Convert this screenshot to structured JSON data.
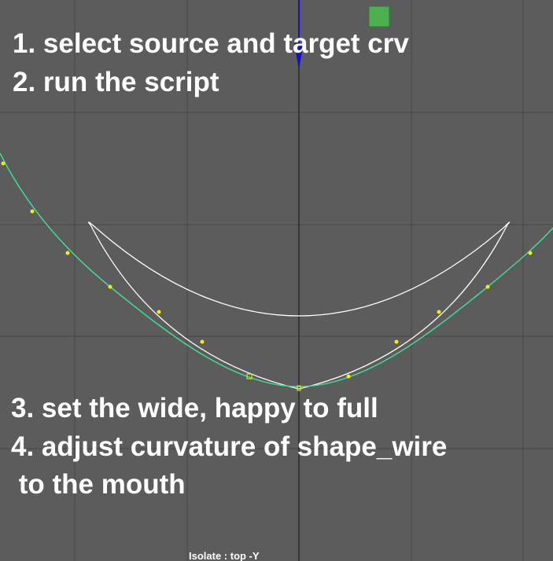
{
  "instructions_top": [
    "1. select source and target crv",
    "2. run the script"
  ],
  "instructions_bottom": [
    "3. set the wide, happy to full",
    "4. adjust curvature of shape_wire",
    " to the mouth"
  ],
  "status": "Isolate : top -Y"
}
